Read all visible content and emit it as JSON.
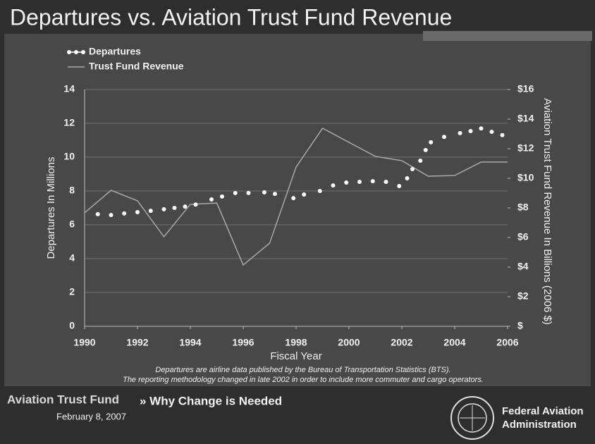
{
  "chart_data": {
    "type": "line",
    "title": "Departures vs. Aviation Trust Fund Revenue",
    "xlabel": "Fiscal Year",
    "ylabel": "Departures In Millions",
    "y2label": "Aviation Trust Fund Revenue In Billions (2006 $)",
    "notes": [
      "Departures are airline data published by the Bureau of Transportation Statistics (BTS).",
      "The reporting methodology changed in late 2002 in order to include more commuter and cargo operators."
    ],
    "xlim": [
      1990,
      2006
    ],
    "xticks": [
      1990,
      1992,
      1994,
      1996,
      1998,
      2000,
      2002,
      2004,
      2006
    ],
    "ylim": [
      0,
      14
    ],
    "yticks": [
      0,
      2,
      4,
      6,
      8,
      10,
      12,
      14
    ],
    "y2lim": [
      0,
      16
    ],
    "y2ticks": [
      {
        "value": 0,
        "label": "$"
      },
      {
        "value": 2,
        "label": "$2"
      },
      {
        "value": 4,
        "label": "$4"
      },
      {
        "value": 6,
        "label": "$6"
      },
      {
        "value": 8,
        "label": "$8"
      },
      {
        "value": 10,
        "label": "$10"
      },
      {
        "value": 12,
        "label": "$12"
      },
      {
        "value": 14,
        "label": "$14"
      },
      {
        "value": 16,
        "label": "$16"
      }
    ],
    "grid": true,
    "legend": "top-left",
    "series": [
      {
        "name": "Departures",
        "color": "#ffffff",
        "marker": "dot",
        "x": [
          1990.5,
          1991,
          1991.5,
          1992,
          1992.5,
          1993,
          1993.4,
          1993.8,
          1994.2,
          1994.8,
          1995.2,
          1995.7,
          1996.2,
          1996.8,
          1997.2,
          1997.9,
          1998.3,
          1998.9,
          1999.4,
          1999.9,
          2000.4,
          2000.9,
          2001.4,
          2001.9,
          2002.2,
          2002.4,
          2002.7,
          2002.9,
          2003.1,
          2003.6,
          2004.2,
          2004.6,
          2005.0,
          2005.4,
          2005.8
        ],
        "values": [
          6.63,
          6.58,
          6.67,
          6.75,
          6.83,
          6.92,
          7.0,
          7.08,
          7.2,
          7.5,
          7.67,
          7.88,
          7.88,
          7.92,
          7.83,
          7.58,
          7.79,
          8.0,
          8.33,
          8.5,
          8.54,
          8.58,
          8.54,
          8.29,
          8.75,
          9.29,
          9.79,
          10.42,
          10.88,
          11.2,
          11.42,
          11.54,
          11.7,
          11.5,
          11.3
        ]
      },
      {
        "name": "Trust Fund Revenue",
        "color": "#a8a8a8",
        "axis": "y2",
        "x": [
          1990,
          1991,
          1992,
          1993,
          1994,
          1995,
          1996,
          1997,
          1998,
          1999,
          2000,
          2001,
          2002,
          2003,
          2004,
          2005,
          2006
        ],
        "values": [
          7.67,
          9.19,
          8.48,
          6.05,
          8.24,
          8.33,
          4.14,
          5.62,
          10.76,
          13.38,
          12.43,
          11.48,
          11.19,
          10.14,
          10.19,
          11.1,
          11.1
        ]
      }
    ]
  },
  "footer": {
    "section": "Aviation Trust Fund",
    "subtitle": "» Why Change is Needed",
    "date": "February 8, 2007",
    "org": [
      "Federal Aviation",
      "Administration"
    ]
  }
}
